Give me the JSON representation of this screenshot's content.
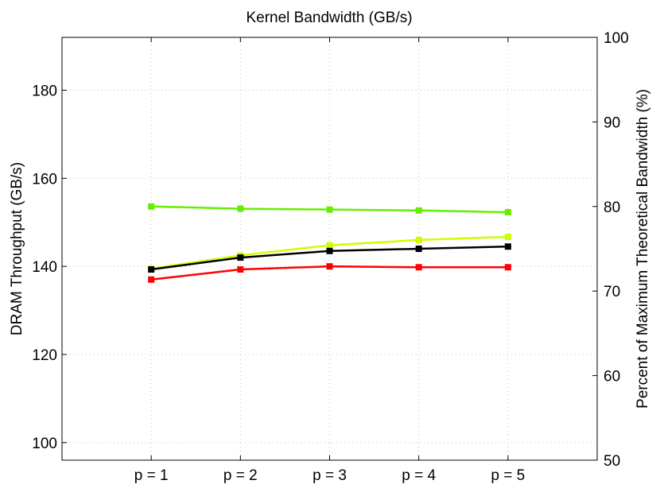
{
  "chart_data": {
    "type": "line",
    "title": "Kernel Bandwidth (GB/s)",
    "ylabel": "DRAM Throughput (GB/s)",
    "y2label": "Percent of Maximum Theoretical  Bandwidth (%)",
    "categories": [
      "p = 1",
      "p = 2",
      "p = 3",
      "p = 4",
      "p = 5"
    ],
    "ylim": [
      96,
      192
    ],
    "yticks": [
      100,
      120,
      140,
      160,
      180
    ],
    "y2lim": [
      50,
      100
    ],
    "y2ticks": [
      50,
      60,
      70,
      80,
      90,
      100
    ],
    "grid": true,
    "series": [
      {
        "color": "#66ee00",
        "marker": "square",
        "values": [
          153.6,
          153.1,
          152.9,
          152.7,
          152.3
        ]
      },
      {
        "color": "#ccff00",
        "marker": "square",
        "values": [
          139.5,
          142.5,
          144.8,
          146.0,
          146.7
        ]
      },
      {
        "color": "#000000",
        "marker": "square",
        "values": [
          139.3,
          142.0,
          143.5,
          144.0,
          144.5
        ]
      },
      {
        "color": "#ff0000",
        "marker": "square",
        "values": [
          137.0,
          139.3,
          140.0,
          139.8,
          139.8
        ]
      }
    ]
  }
}
